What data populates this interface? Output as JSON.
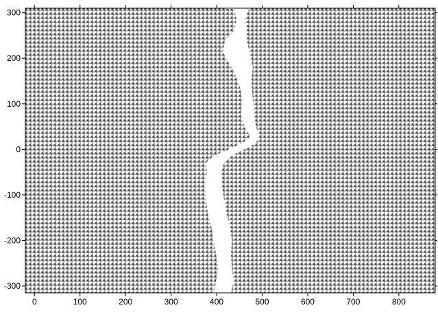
{
  "chart_data": {
    "type": "heatmap",
    "title": "",
    "xlabel": "",
    "ylabel": "",
    "xlim": [
      -20,
      880
    ],
    "ylim": [
      -315,
      310
    ],
    "grid": false,
    "legend": "none",
    "xticks": [
      0,
      100,
      200,
      300,
      400,
      500,
      600,
      700,
      800
    ],
    "yticks": [
      -300,
      -200,
      -100,
      0,
      100,
      200,
      300
    ],
    "x_tick_labels": [
      "0",
      "100",
      "200",
      "300",
      "400",
      "500",
      "600",
      "700",
      "800"
    ],
    "y_tick_labels": [
      "-300",
      "-200",
      "-100",
      "0",
      "100",
      "200",
      "300"
    ],
    "lattice_spacing": 6,
    "lattice_color": "#4a4a4a",
    "background_color": "#ffffff",
    "crack_path": {
      "left_edge": [
        [
          395,
          -315
        ],
        [
          400,
          -290
        ],
        [
          405,
          -260
        ],
        [
          400,
          -230
        ],
        [
          395,
          -200
        ],
        [
          390,
          -170
        ],
        [
          382,
          -140
        ],
        [
          378,
          -110
        ],
        [
          375,
          -80
        ],
        [
          380,
          -50
        ],
        [
          378,
          -30
        ],
        [
          395,
          -15
        ],
        [
          420,
          -5
        ],
        [
          440,
          5
        ],
        [
          455,
          12
        ],
        [
          470,
          20
        ],
        [
          475,
          30
        ],
        [
          462,
          50
        ],
        [
          455,
          80
        ],
        [
          458,
          110
        ],
        [
          452,
          140
        ],
        [
          440,
          170
        ],
        [
          425,
          195
        ],
        [
          415,
          215
        ],
        [
          420,
          240
        ],
        [
          440,
          260
        ],
        [
          445,
          285
        ],
        [
          440,
          310
        ]
      ],
      "right_edge": [
        [
          420,
          310
        ],
        [
          470,
          310
        ],
        [
          460,
          285
        ],
        [
          465,
          260
        ],
        [
          465,
          240
        ],
        [
          470,
          215
        ],
        [
          478,
          180
        ],
        [
          475,
          150
        ],
        [
          478,
          110
        ],
        [
          480,
          80
        ],
        [
          485,
          50
        ],
        [
          492,
          30
        ],
        [
          485,
          15
        ],
        [
          468,
          5
        ],
        [
          445,
          -5
        ],
        [
          430,
          -15
        ],
        [
          415,
          -30
        ],
        [
          408,
          -50
        ],
        [
          410,
          -80
        ],
        [
          415,
          -110
        ],
        [
          420,
          -140
        ],
        [
          428,
          -170
        ],
        [
          432,
          -200
        ],
        [
          430,
          -230
        ],
        [
          432,
          -260
        ],
        [
          435,
          -290
        ],
        [
          430,
          -315
        ]
      ]
    }
  }
}
